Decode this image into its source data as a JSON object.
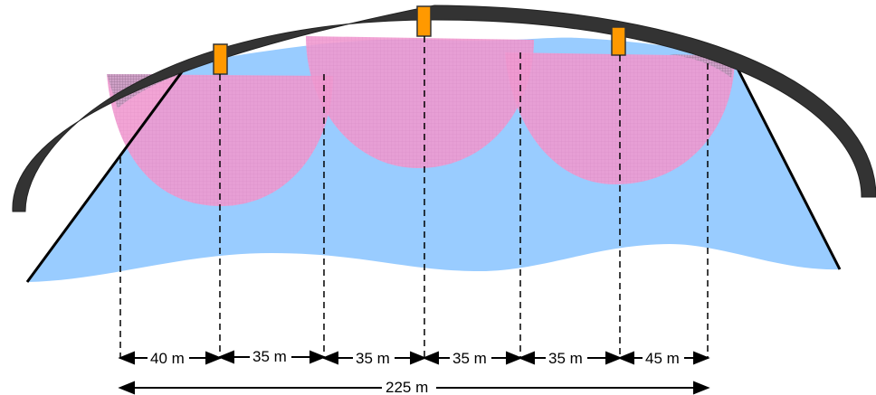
{
  "diagram": {
    "segments": [
      {
        "label": "40 m"
      },
      {
        "label": "35 m"
      },
      {
        "label": "35 m"
      },
      {
        "label": "35 m"
      },
      {
        "label": "35 m"
      },
      {
        "label": "45 m"
      }
    ],
    "total": {
      "label": "225 m"
    },
    "lights_count": 3,
    "colors": {
      "water": "#99ccff",
      "coverage": "#f09ad0",
      "arch": "#333333",
      "light": "#ff9900",
      "line": "#000000"
    }
  }
}
